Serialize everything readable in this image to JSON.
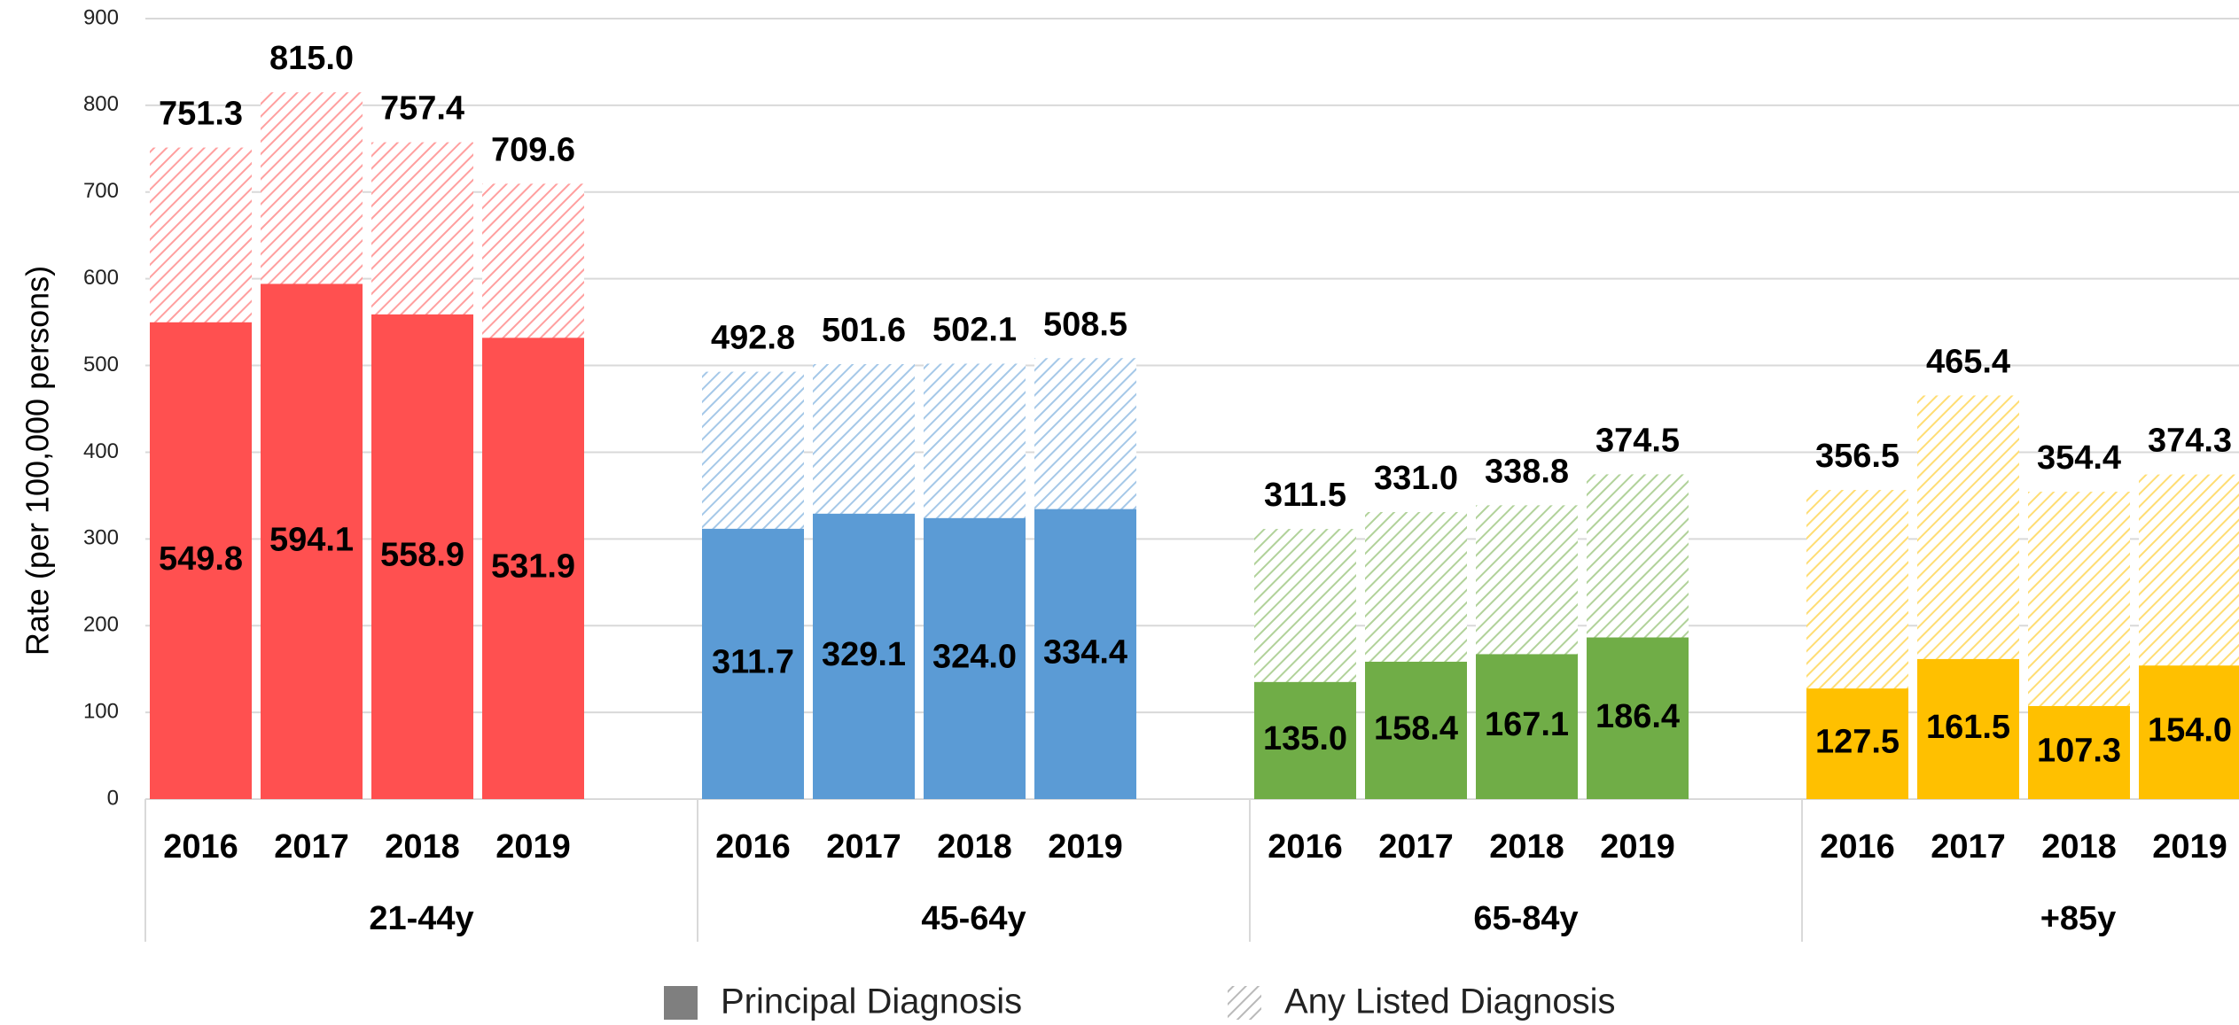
{
  "chart_data": {
    "type": "bar",
    "ylabel": "Rate (per 100,000 persons)",
    "ylim": [
      0,
      900
    ],
    "yticks": [
      0,
      100,
      200,
      300,
      400,
      500,
      600,
      700,
      800,
      900
    ],
    "grid": true,
    "legend": "bottom",
    "series": [
      {
        "name": "Principal Diagnosis",
        "color": "#7f7f7f",
        "style": "solid"
      },
      {
        "name": "Any Listed Diagnosis",
        "color": "#7f7f7f",
        "style": "hatched"
      }
    ],
    "groups": [
      {
        "label": "21-44y",
        "color": "#ff5050",
        "categories": [
          "2016",
          "2017",
          "2018",
          "2019"
        ],
        "values": [
          [
            549.8,
            594.1,
            558.9,
            531.9
          ],
          [
            751.3,
            815.0,
            757.4,
            709.6
          ]
        ],
        "value_labels": [
          [
            "549.8",
            "594.1",
            "558.9",
            "531.9"
          ],
          [
            "751.3",
            "815.0",
            "757.4",
            "709.6"
          ]
        ]
      },
      {
        "label": "45-64y",
        "color": "#5b9bd5",
        "categories": [
          "2016",
          "2017",
          "2018",
          "2019"
        ],
        "values": [
          [
            311.7,
            329.1,
            324.0,
            334.4
          ],
          [
            492.8,
            501.6,
            502.1,
            508.5
          ]
        ],
        "value_labels": [
          [
            "311.7",
            "329.1",
            "324.0",
            "334.4"
          ],
          [
            "492.8",
            "501.6",
            "502.1",
            "508.5"
          ]
        ]
      },
      {
        "label": "65-84y",
        "color": "#70ad47",
        "categories": [
          "2016",
          "2017",
          "2018",
          "2019"
        ],
        "values": [
          [
            135.0,
            158.4,
            167.1,
            186.4
          ],
          [
            311.5,
            331.0,
            338.8,
            374.5
          ]
        ],
        "value_labels": [
          [
            "135.0",
            "158.4",
            "167.1",
            "186.4"
          ],
          [
            "311.5",
            "331.0",
            "338.8",
            "374.5"
          ]
        ]
      },
      {
        "label": "+85y",
        "color": "#ffc000",
        "categories": [
          "2016",
          "2017",
          "2018",
          "2019"
        ],
        "values": [
          [
            127.5,
            161.5,
            107.3,
            154.0
          ],
          [
            356.5,
            465.4,
            354.4,
            374.3
          ]
        ],
        "value_labels": [
          [
            "127.5",
            "161.5",
            "107.3",
            "154.0"
          ],
          [
            "356.5",
            "465.4",
            "354.4",
            "374.3"
          ]
        ]
      }
    ]
  }
}
